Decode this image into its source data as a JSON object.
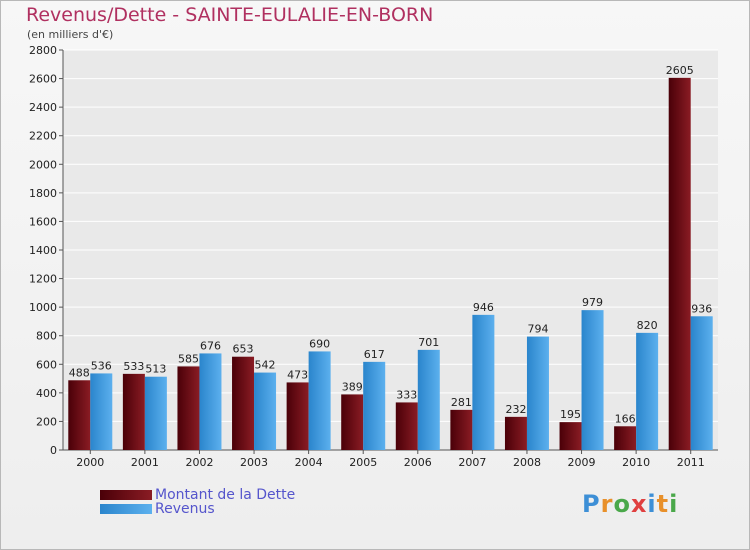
{
  "header": {
    "title": "Revenus/Dette - SAINTE-EULALIE-EN-BORN",
    "subtitle": "(en milliers d'€)"
  },
  "colors": {
    "debt": "#6b0a12",
    "revenue": "#3d9be0",
    "title": "#b03060",
    "legend_text": "#5555cc"
  },
  "legend": {
    "items": [
      {
        "label": "Montant de la Dette",
        "color": "#6b0a12"
      },
      {
        "label": "Revenus",
        "color": "#3d9be0"
      }
    ]
  },
  "logo": {
    "text": "Proxiti"
  },
  "chart_data": {
    "type": "bar",
    "categories": [
      "2000",
      "2001",
      "2002",
      "2003",
      "2004",
      "2005",
      "2006",
      "2007",
      "2008",
      "2009",
      "2010",
      "2011"
    ],
    "series": [
      {
        "name": "Montant de la Dette",
        "values": [
          488,
          533,
          585,
          653,
          473,
          389,
          333,
          281,
          232,
          195,
          166,
          2605
        ]
      },
      {
        "name": "Revenus",
        "values": [
          536,
          513,
          676,
          542,
          690,
          617,
          701,
          946,
          794,
          979,
          820,
          936
        ]
      }
    ],
    "ylim": [
      0,
      2800
    ],
    "yticks": [
      0,
      200,
      400,
      600,
      800,
      1000,
      1200,
      1400,
      1600,
      1800,
      2000,
      2200,
      2400,
      2600,
      2800
    ],
    "grid": true,
    "legend_position": "bottom-left"
  }
}
